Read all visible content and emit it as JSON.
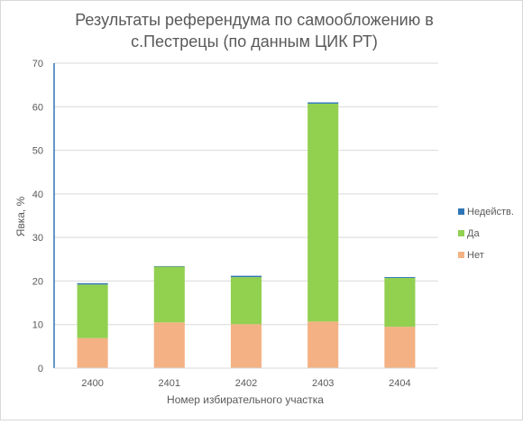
{
  "chart_data": {
    "type": "bar",
    "stacked": true,
    "title_lines": [
      "Результаты референдума по самообложению в",
      "с.Пестрецы (по данным ЦИК РТ)"
    ],
    "xlabel": "Номер избирательного участка",
    "ylabel": "Явка, %",
    "categories": [
      "2400",
      "2401",
      "2402",
      "2403",
      "2404"
    ],
    "ylim": [
      0,
      70
    ],
    "yticks": [
      "0",
      "10",
      "20",
      "30",
      "40",
      "50",
      "60",
      "70"
    ],
    "grid": true,
    "legend_position": "right",
    "series": [
      {
        "name": "Нет",
        "color": "#f4b183",
        "values": [
          6.9,
          10.5,
          10.1,
          10.7,
          9.5
        ]
      },
      {
        "name": "Да",
        "color": "#92d050",
        "values": [
          12.3,
          12.8,
          10.8,
          50.0,
          11.2
        ]
      },
      {
        "name": "Недейств.",
        "color": "#2e75b6",
        "values": [
          0.3,
          0.1,
          0.3,
          0.3,
          0.2
        ]
      }
    ]
  }
}
